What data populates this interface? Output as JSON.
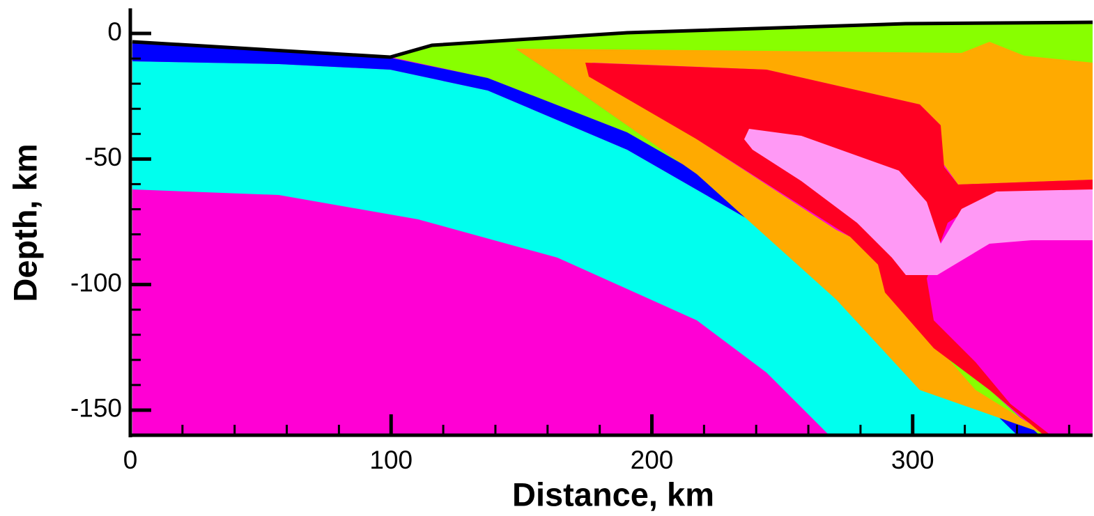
{
  "chart_data": {
    "type": "contour",
    "xlabel": "Distance, km",
    "ylabel": "Depth, km",
    "xlim": [
      0,
      369
    ],
    "ylim": [
      -160,
      10
    ],
    "xticks": [
      0,
      100,
      200,
      300
    ],
    "yticks": [
      0,
      -50,
      -100,
      -150
    ],
    "xminorticks": [
      20,
      40,
      60,
      80,
      120,
      140,
      160,
      180,
      220,
      240,
      260,
      280,
      320,
      340,
      360
    ],
    "yminorticks": [
      -10,
      -20,
      -30,
      -40,
      -60,
      -70,
      -80,
      -90,
      -110,
      -120,
      -130,
      -140
    ]
  }
}
